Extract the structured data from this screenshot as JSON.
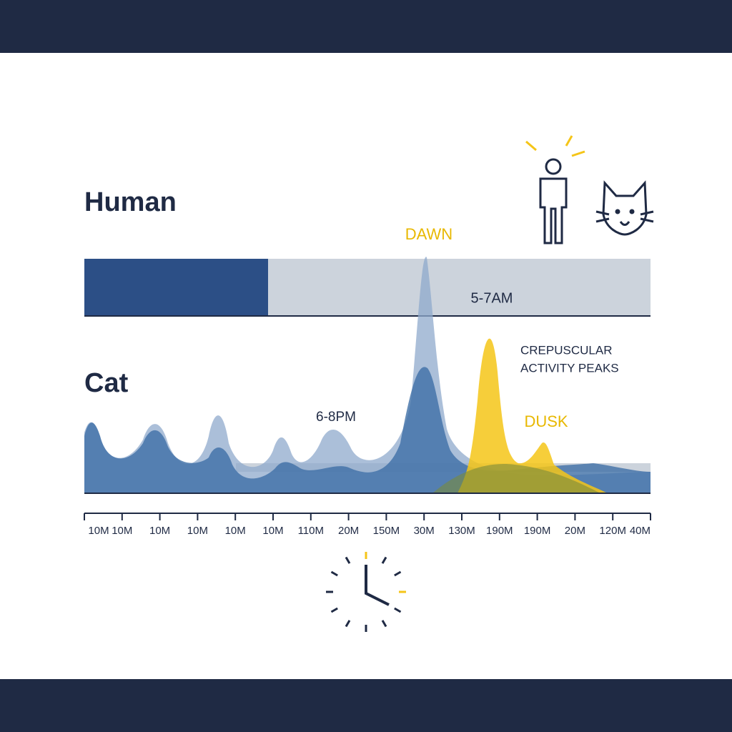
{
  "labels": {
    "human": "Human",
    "cat": "Cat",
    "dawn": "DAWN",
    "dawn_time": "5-7AM",
    "peaks": [
      "CREPUSCULAR",
      "ACTIVITY PEAKS"
    ],
    "dusk_time": "6-8PM",
    "dusk": "DUSK"
  },
  "axis": {
    "ticks": [
      "10M",
      "10M",
      "10M",
      "10M",
      "10M",
      "10M",
      "110M",
      "20M",
      "150M",
      "30M",
      "130M",
      "190M",
      "190M",
      "20M",
      "120M",
      "40M"
    ]
  }
}
